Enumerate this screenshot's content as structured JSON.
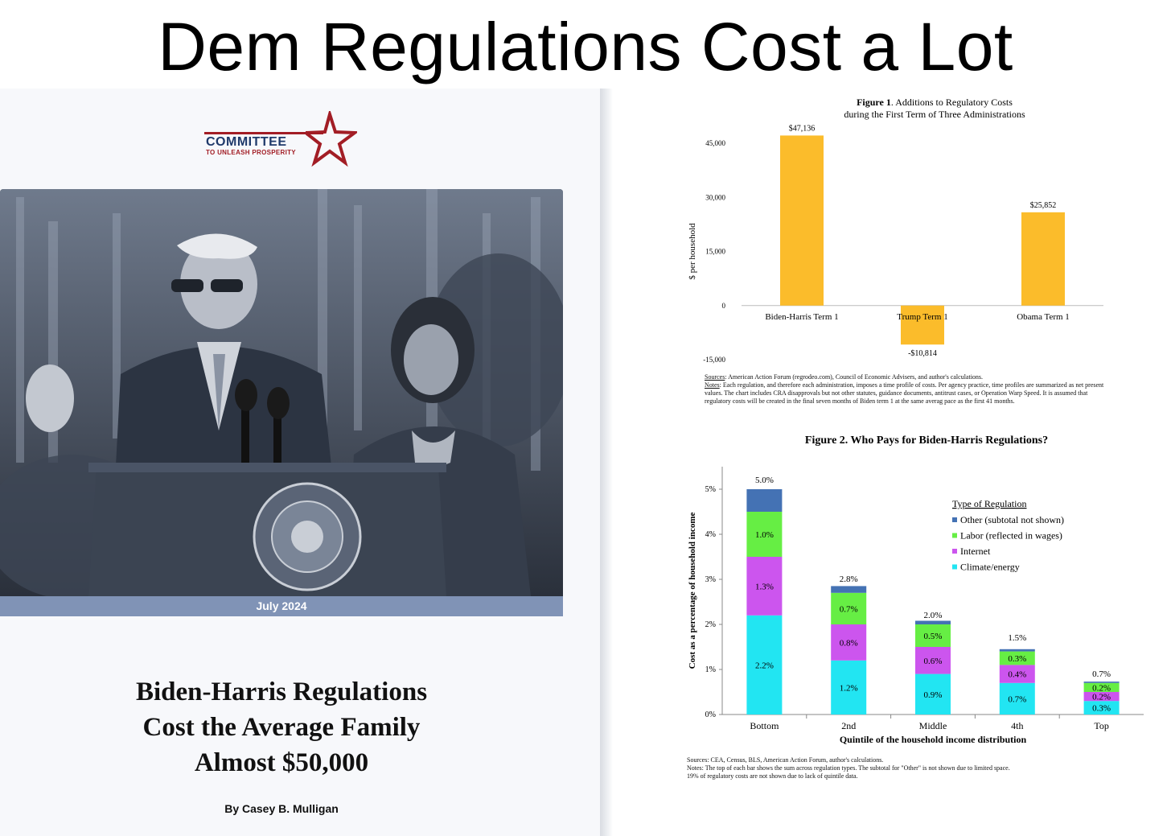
{
  "headline": "Dem Regulations Cost a Lot",
  "cover": {
    "logo_main": "COMMITTEE",
    "logo_sub": "TO UNLEASH PROSPERITY",
    "date": "July 2024",
    "title_lines": [
      "Biden-Harris Regulations",
      "Cost the Average Family",
      "Almost $50,000"
    ],
    "author": "By Casey B. Mulligan"
  },
  "figure1": {
    "caption_bold": "Figure 1",
    "caption_rest": ".  Additions to Regulatory Costs",
    "caption_line2": "during the First Term of Three Administrations",
    "sources_label": "Sources",
    "sources": ": American Action Forum (regrodeo.com), Council of Economic Advisers, and author's calculations.",
    "notes_label": "Notes",
    "notes": ": Each regulation, and therefore each administration, imposes a time profile of costs.  Per agency practice, time profiles are summarized as net present values.  The chart includes CRA disapprovals but not other statutes, guidance documents, antitrust cases, or Operation Warp Speed.  It is assumed that regulatory costs will be created in the final seven months of Biden term 1 at the same averag pace as the first 41 months."
  },
  "figure2": {
    "caption": "Figure 2.  Who Pays for Biden-Harris Regulations?",
    "legend_title": "Type of Regulation",
    "notes_lines": [
      "Sources: CEA, Census, BLS, American Action Forum, author's calculations.",
      "Notes: The top of each bar shows the sum across regulation types.  The subtotal for \"Other\" is not shown due to limited space.",
      "19% of regulatory costs are not shown due to lack of quintile data."
    ]
  },
  "chart_data": [
    {
      "type": "bar",
      "categories": [
        "Biden-Harris Term 1",
        "Trump Term 1",
        "Obama Term 1"
      ],
      "values": [
        47136,
        -10814,
        25852
      ],
      "value_labels": [
        "$47,136",
        "-$10,814",
        "$25,852"
      ],
      "ylabel": "$ per household",
      "ylim": [
        -15000,
        45000
      ],
      "yticks": [
        45000,
        30000,
        15000,
        0,
        -15000
      ],
      "ytick_labels": [
        "45,000",
        "30,000",
        "15,000",
        "0",
        "-15,000"
      ],
      "bar_color": "#fbbc2b",
      "grid": false
    },
    {
      "type": "bar",
      "stacked": true,
      "categories": [
        "Bottom",
        "2nd",
        "Middle",
        "4th",
        "Top"
      ],
      "xlabel": "Quintile of the household income distribution",
      "ylabel": "Cost as a percentage of household income",
      "ylim": [
        0,
        5.5
      ],
      "yticks": [
        0,
        1,
        2,
        3,
        4,
        5
      ],
      "ytick_labels": [
        "0%",
        "1%",
        "2%",
        "3%",
        "4%",
        "5%"
      ],
      "totals": [
        5.0,
        2.8,
        2.0,
        1.5,
        0.7
      ],
      "total_labels": [
        "5.0%",
        "2.8%",
        "2.0%",
        "1.5%",
        "0.7%"
      ],
      "legend_placement": "top-right",
      "series": [
        {
          "name": "Climate/energy",
          "values": [
            2.2,
            1.2,
            0.9,
            0.7,
            0.3
          ],
          "labels": [
            "2.2%",
            "1.2%",
            "0.9%",
            "0.7%",
            "0.3%"
          ],
          "color": "#22e5f2"
        },
        {
          "name": "Internet",
          "values": [
            1.3,
            0.8,
            0.6,
            0.4,
            0.2
          ],
          "labels": [
            "1.3%",
            "0.8%",
            "0.6%",
            "0.4%",
            "0.2%"
          ],
          "color": "#cc55ee"
        },
        {
          "name": "Labor (reflected in wages)",
          "values": [
            1.0,
            0.7,
            0.5,
            0.3,
            0.2
          ],
          "labels": [
            "1.0%",
            "0.7%",
            "0.5%",
            "0.3%",
            "0.2%"
          ],
          "color": "#66ee44"
        },
        {
          "name": "Other (subtotal not shown)",
          "values": [
            0.5,
            0.15,
            0.08,
            0.05,
            0.03
          ],
          "labels": [
            "",
            "",
            "",
            "",
            ""
          ],
          "color": "#4472b4"
        }
      ]
    }
  ]
}
